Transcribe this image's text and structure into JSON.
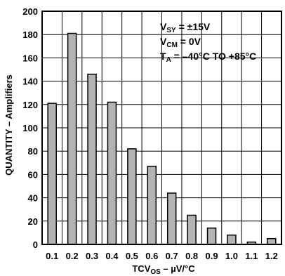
{
  "chart_data": {
    "type": "bar",
    "categories": [
      "0.1",
      "0.2",
      "0.3",
      "0.4",
      "0.5",
      "0.6",
      "0.7",
      "0.8",
      "0.9",
      "1.0",
      "1.1",
      "1.2"
    ],
    "values": [
      121,
      181,
      146,
      122,
      82,
      67,
      44,
      25,
      14,
      8,
      2,
      5
    ],
    "ylim": [
      0,
      200
    ],
    "yticks": [
      "0",
      "20",
      "40",
      "60",
      "80",
      "100",
      "120",
      "140",
      "160",
      "180",
      "200"
    ],
    "xlabel": {
      "main": "TCV",
      "sub": "OS",
      "tail": " – µV/°C"
    },
    "ylabel": "QUANTITY – Amplifiers",
    "grid": true,
    "bar_color": "#b3b3b3",
    "annotations": [
      {
        "main": "V",
        "sub": "SY",
        "tail": " = ±15V"
      },
      {
        "main": "V",
        "sub": "CM",
        "tail": " = 0V"
      },
      {
        "main": "T",
        "sub": "A",
        "tail": " = –40°C TO +85°C"
      }
    ]
  }
}
